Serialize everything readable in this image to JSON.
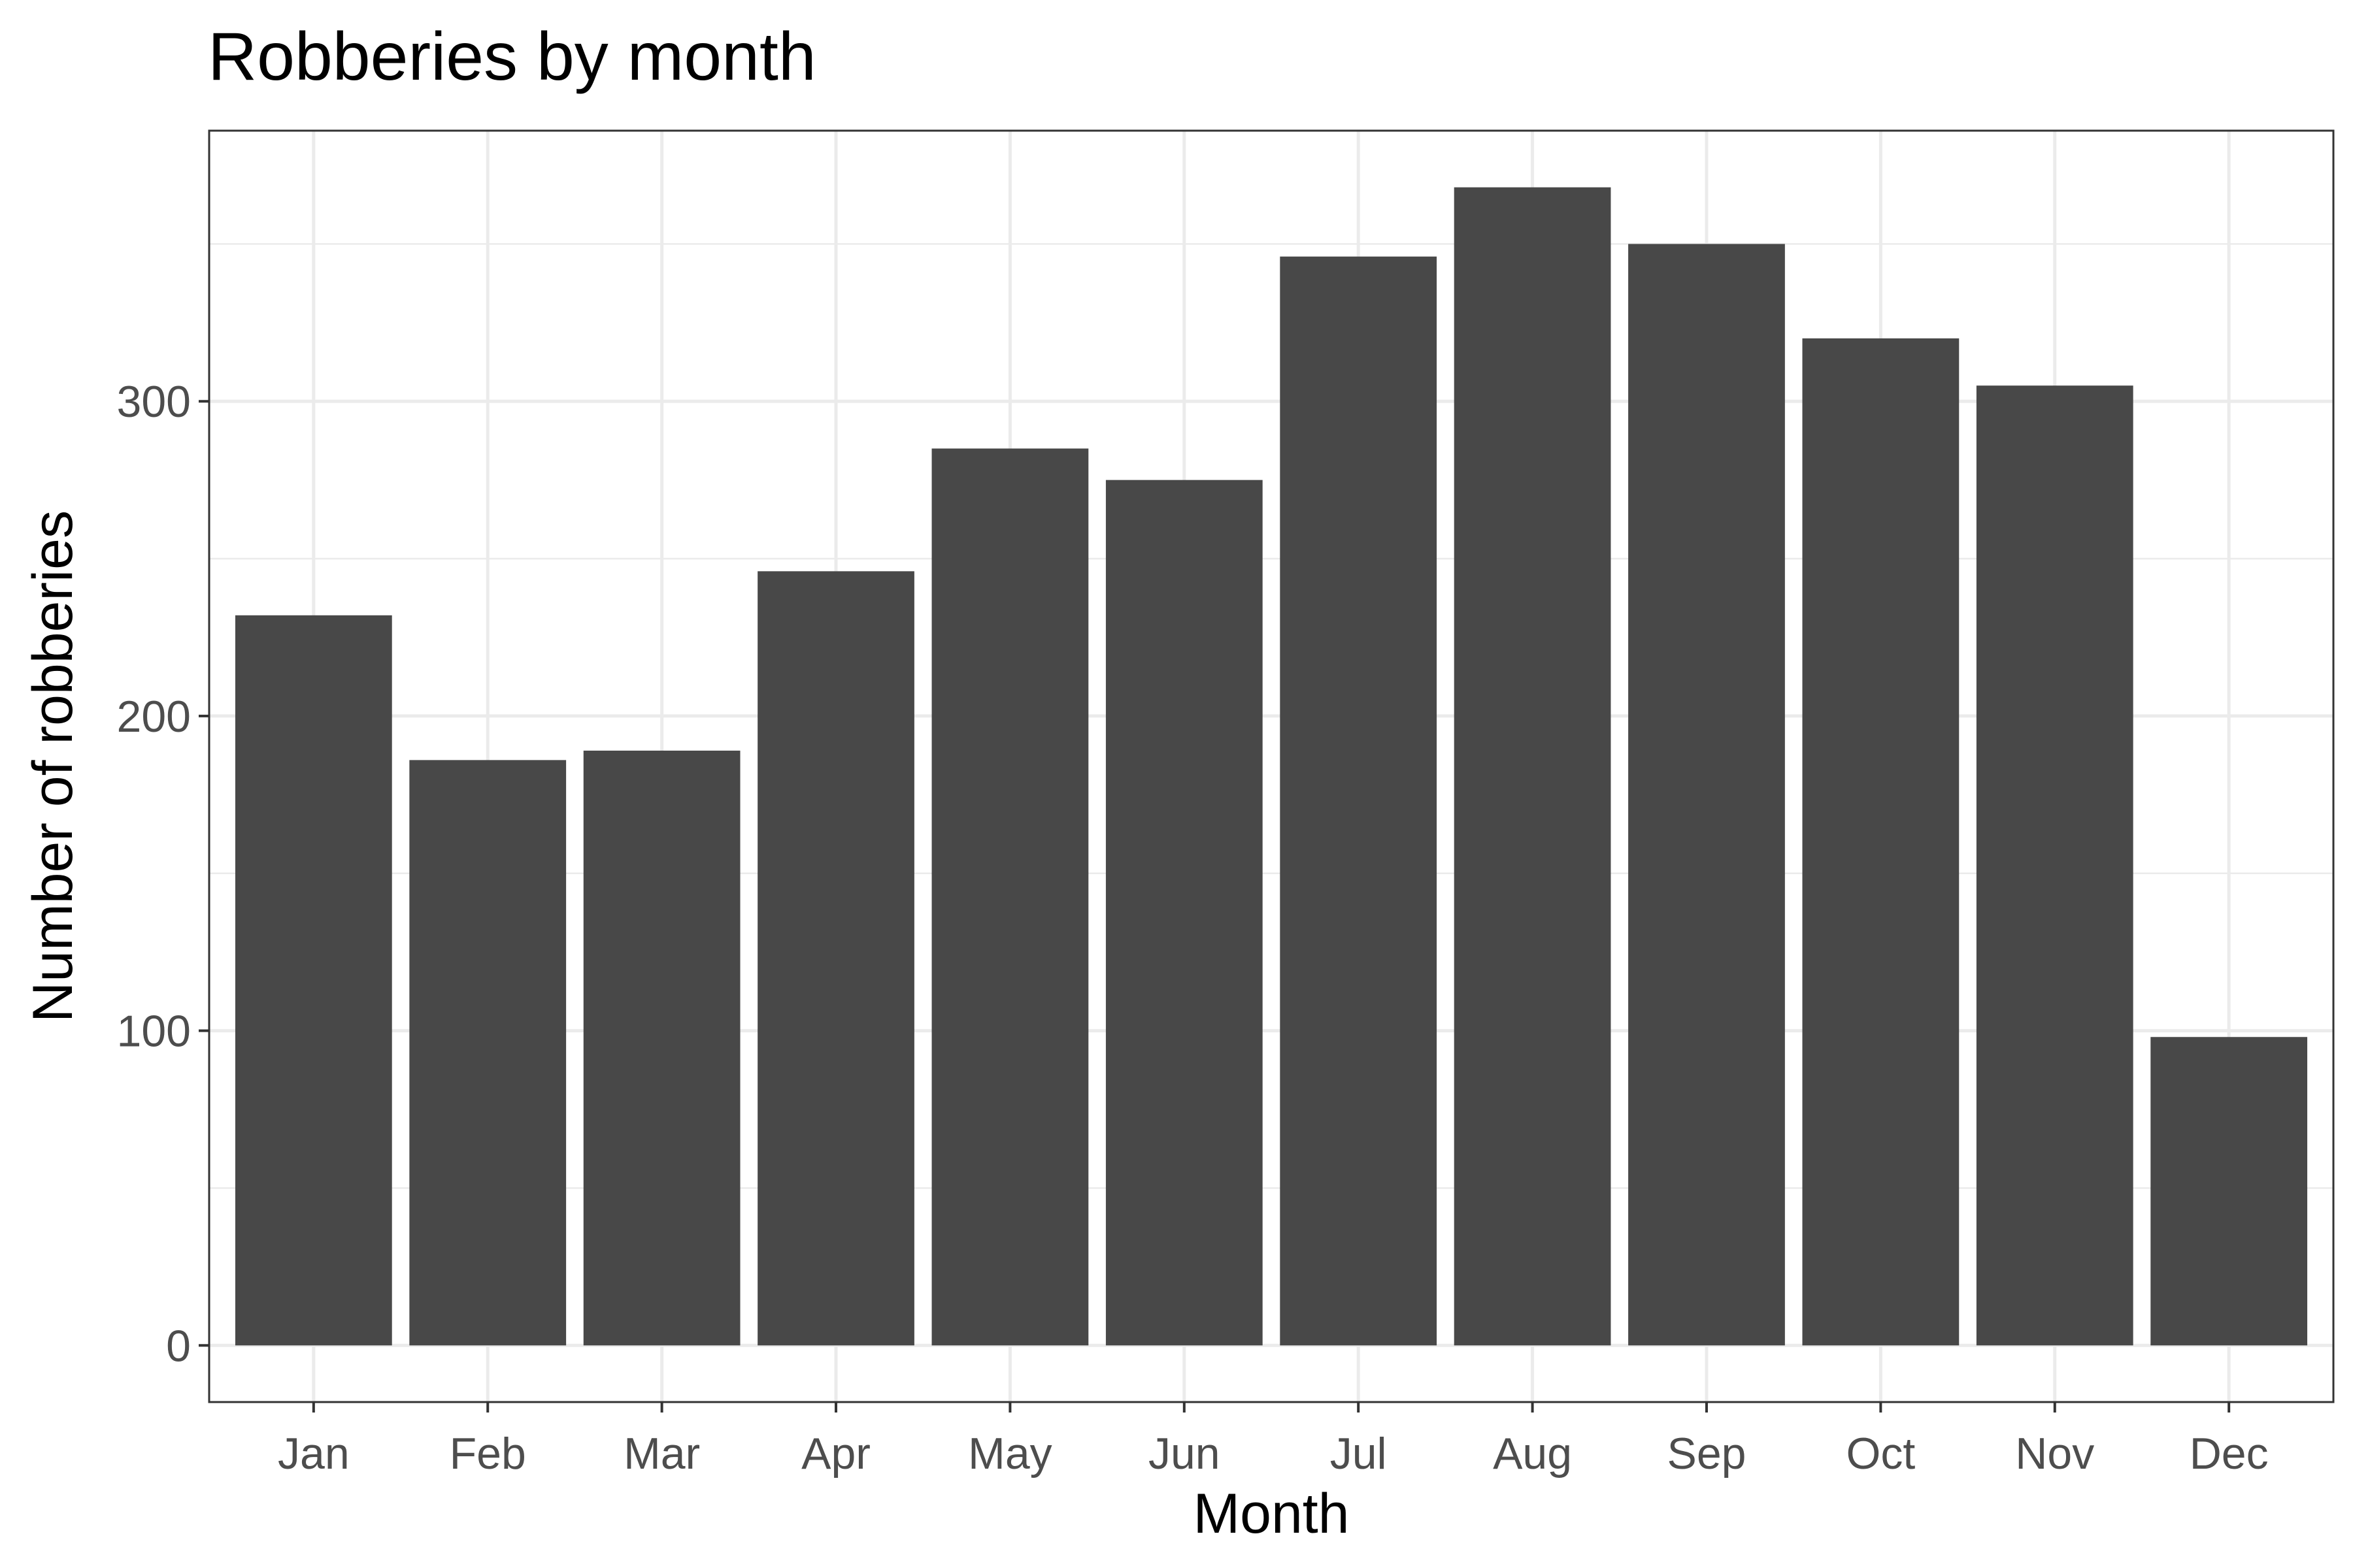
{
  "chart_data": {
    "type": "bar",
    "title": "Robberies by month",
    "xlabel": "Month",
    "ylabel": "Number of robberies",
    "categories": [
      "Jan",
      "Feb",
      "Mar",
      "Apr",
      "May",
      "Jun",
      "Jul",
      "Aug",
      "Sep",
      "Oct",
      "Nov",
      "Dec"
    ],
    "values": [
      232,
      186,
      189,
      246,
      285,
      275,
      346,
      368,
      350,
      320,
      305,
      98
    ],
    "ylim": [
      -18,
      386
    ],
    "yticks": [
      0,
      100,
      200,
      300
    ],
    "ytick_labels": [
      "0",
      "100",
      "200",
      "300"
    ],
    "grid": true,
    "legend": "none",
    "colors": {
      "bar": "#484848",
      "panel_border": "#333333",
      "grid": "#ebebeb",
      "tick_label": "#4d4d4d",
      "background": "#ffffff"
    }
  }
}
